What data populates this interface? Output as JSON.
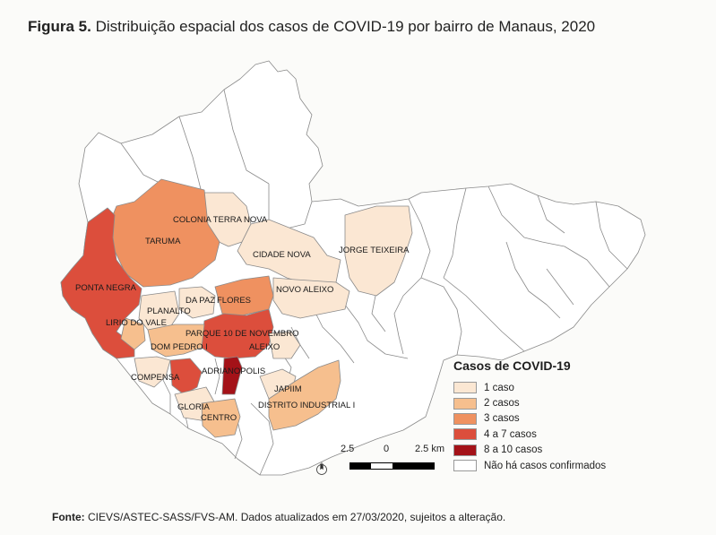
{
  "title": {
    "label": "Figura 5.",
    "text": "Distribuição espacial dos casos de COVID-19 por bairro de Manaus, 2020"
  },
  "map_labels": {
    "colonia_terra_nova": "COLONIA TERRA NOVA",
    "taruma": "TARUMA",
    "jorge_teixeira": "JORGE TEIXEIRA",
    "cidade_nova": "CIDADE NOVA",
    "ponta_negra": "PONTA NEGRA",
    "novo_aleixo": "NOVO ALEIXO",
    "da_paz": "DA PAZ",
    "flores": "FLORES",
    "planalto": "PLANALTO",
    "lirio_do_vale": "LIRIO DO VALE",
    "parque_10": "PARQUE 10 DE NOVEMBRO",
    "dom_pedro": "DOM PEDRO I",
    "aleixo": "ALEIXO",
    "compensa": "COMPENSA",
    "adrianopolis": "ADRIANOPOLIS",
    "japiim": "JAPIIM",
    "gloria": "GLORIA",
    "distrito_industrial": "DISTRITO INDUSTRIAL I",
    "centro": "CENTRO"
  },
  "colors": {
    "c1": "#fbe7d3",
    "c2": "#f6bf8e",
    "c3": "#ef9160",
    "c4": "#dc4e3c",
    "c5": "#a41218",
    "none": "#ffffff",
    "border": "#8a8a8a"
  },
  "legend": {
    "title": "Casos de COVID-19",
    "items": [
      {
        "label": "1 caso",
        "color": "#fbe7d3"
      },
      {
        "label": "2 casos",
        "color": "#f6bf8e"
      },
      {
        "label": "3 casos",
        "color": "#ef9160"
      },
      {
        "label": "4 a 7 casos",
        "color": "#dc4e3c"
      },
      {
        "label": "8 a 10 casos",
        "color": "#a41218"
      },
      {
        "label": "Não há casos confirmados",
        "color": "#ffffff"
      }
    ]
  },
  "scale": {
    "left": "2.5",
    "mid": "0",
    "right": "2.5 km"
  },
  "north": "N",
  "source": {
    "label": "Fonte:",
    "text": "CIEVS/ASTEC-SASS/FVS-AM. Dados atualizados em 27/03/2020, sujeitos a alteração."
  }
}
